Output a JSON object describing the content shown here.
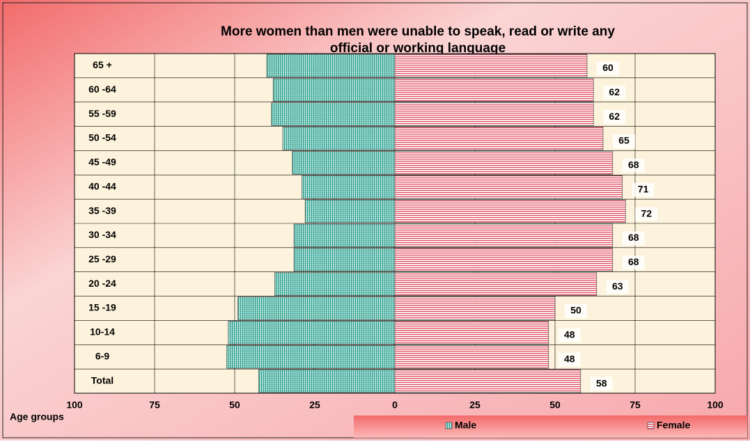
{
  "chart_data": {
    "type": "pyramid",
    "title": "More women than men were unable to speak, read or write any official or working language",
    "y_label": "Age groups",
    "categories": [
      "65 +",
      "60 -64",
      "55 -59",
      "50 -54",
      "45 -49",
      "40 -44",
      "35 -39",
      "30 -34",
      "25 -29",
      "20 -24",
      "15 -19",
      "10-14",
      "6-9",
      "Total"
    ],
    "series": [
      {
        "name": "Male",
        "color": "#3aa89a",
        "side": "left",
        "values": [
          40,
          38,
          38.5,
          35,
          32,
          29,
          28,
          31.5,
          31.5,
          37.5,
          49,
          52,
          52.5,
          42.5
        ]
      },
      {
        "name": "Female",
        "color": "#e0485c",
        "side": "right",
        "values": [
          60,
          62,
          62,
          65,
          68,
          71,
          72,
          68,
          68,
          63,
          50,
          48,
          48,
          58
        ]
      }
    ],
    "xlim": [
      -100,
      100
    ],
    "xticks": [
      {
        "value": -100,
        "label": "100"
      },
      {
        "value": -75,
        "label": "75"
      },
      {
        "value": -50,
        "label": "50"
      },
      {
        "value": -25,
        "label": "25"
      },
      0,
      25,
      50,
      75,
      100
    ],
    "grid": true
  }
}
